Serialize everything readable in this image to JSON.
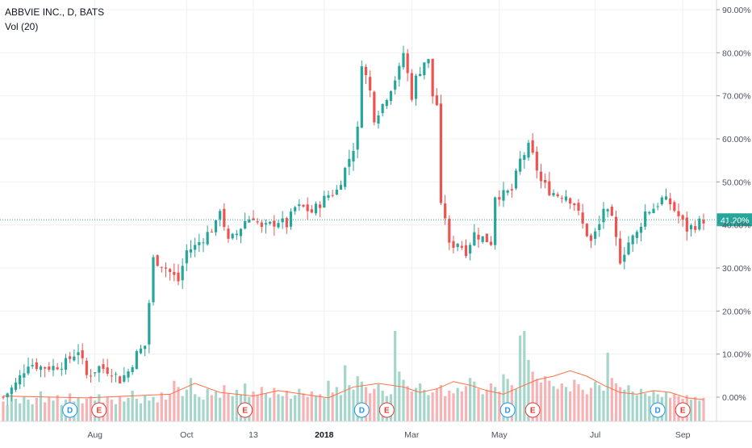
{
  "legend": {
    "symbol": "ABBVIE INC., D, BATS",
    "volume": "Vol (20)"
  },
  "colors": {
    "up": "#26a69a",
    "down": "#ef5350",
    "vol_up": "#a5d6c9",
    "vol_down": "#f7b2b5",
    "vol_ma": "#ff7043",
    "last_line": "#26a69a",
    "grid": "#eef0f3",
    "dividend": "#2196f3",
    "earnings": "#e53935"
  },
  "chart_data": {
    "type": "candlestick",
    "y_axis": {
      "unit": "percent",
      "range": [
        -6,
        92
      ],
      "ticks": [
        "90.00%",
        "80.00%",
        "70.00%",
        "60.00%",
        "50.00%",
        "40.00%",
        "30.00%",
        "20.00%",
        "10.00%",
        "0.00%"
      ],
      "tick_values": [
        90,
        80,
        70,
        60,
        50,
        40,
        30,
        20,
        10,
        0
      ]
    },
    "x_axis": {
      "range": [
        0,
        168
      ],
      "ticks": [
        {
          "label": "Aug",
          "pos": 22,
          "bold": false
        },
        {
          "label": "Oct",
          "pos": 44,
          "bold": false
        },
        {
          "label": "13",
          "pos": 60,
          "bold": false
        },
        {
          "label": "2018",
          "pos": 77,
          "bold": true
        },
        {
          "label": "Mar",
          "pos": 98,
          "bold": false
        },
        {
          "label": "May",
          "pos": 119,
          "bold": false
        },
        {
          "label": "Jul",
          "pos": 142,
          "bold": false
        },
        {
          "label": "Sep",
          "pos": 163,
          "bold": false
        }
      ]
    },
    "last_value": {
      "label": "41.20%",
      "value": 41.2
    },
    "close_path": [
      [
        0,
        0
      ],
      [
        3,
        3
      ],
      [
        6,
        8
      ],
      [
        9,
        7
      ],
      [
        12,
        7
      ],
      [
        15,
        8
      ],
      [
        18,
        11
      ],
      [
        20,
        5
      ],
      [
        23,
        7
      ],
      [
        26,
        6
      ],
      [
        28,
        4
      ],
      [
        30,
        6
      ],
      [
        32,
        10
      ],
      [
        34,
        12
      ],
      [
        36,
        32
      ],
      [
        38,
        31
      ],
      [
        40,
        29
      ],
      [
        42,
        27
      ],
      [
        44,
        34
      ],
      [
        46,
        35
      ],
      [
        49,
        38
      ],
      [
        51,
        40
      ],
      [
        52,
        44
      ],
      [
        54,
        36
      ],
      [
        56,
        38
      ],
      [
        58,
        41
      ],
      [
        60,
        42
      ],
      [
        62,
        39
      ],
      [
        64,
        40
      ],
      [
        66,
        41
      ],
      [
        68,
        40
      ],
      [
        70,
        44
      ],
      [
        72,
        44
      ],
      [
        74,
        43
      ],
      [
        76,
        45
      ],
      [
        78,
        47
      ],
      [
        80,
        48
      ],
      [
        82,
        53
      ],
      [
        84,
        58
      ],
      [
        85,
        62
      ],
      [
        86,
        78
      ],
      [
        88,
        71
      ],
      [
        89,
        65
      ],
      [
        91,
        68
      ],
      [
        93,
        72
      ],
      [
        95,
        76
      ],
      [
        96,
        80
      ],
      [
        98,
        70
      ],
      [
        99,
        74
      ],
      [
        101,
        78
      ],
      [
        102,
        78
      ],
      [
        103,
        70
      ],
      [
        104,
        68
      ],
      [
        105,
        44
      ],
      [
        106,
        42
      ],
      [
        107,
        35
      ],
      [
        109,
        36
      ],
      [
        111,
        34
      ],
      [
        113,
        38
      ],
      [
        115,
        37
      ],
      [
        117,
        36
      ],
      [
        118,
        47
      ],
      [
        120,
        47
      ],
      [
        122,
        48
      ],
      [
        124,
        55
      ],
      [
        126,
        58
      ],
      [
        127,
        56
      ],
      [
        129,
        50
      ],
      [
        131,
        48
      ],
      [
        133,
        47
      ],
      [
        135,
        47
      ],
      [
        137,
        45
      ],
      [
        139,
        40
      ],
      [
        141,
        36
      ],
      [
        143,
        40
      ],
      [
        144,
        44
      ],
      [
        146,
        41
      ],
      [
        148,
        32
      ],
      [
        150,
        36
      ],
      [
        152,
        38
      ],
      [
        154,
        43
      ],
      [
        156,
        44
      ],
      [
        158,
        46
      ],
      [
        160,
        45
      ],
      [
        162,
        42
      ],
      [
        164,
        39
      ],
      [
        166,
        40
      ],
      [
        168,
        41.2
      ]
    ],
    "volume": {
      "range": [
        0,
        100
      ],
      "values": [
        22,
        18,
        30,
        25,
        20,
        28,
        24,
        19,
        26,
        33,
        21,
        27,
        23,
        29,
        18,
        24,
        31,
        22,
        26,
        20,
        25,
        28,
        23,
        30,
        21,
        27,
        24,
        19,
        28,
        22,
        26,
        34,
        25,
        20,
        29,
        23,
        27,
        21,
        32,
        24,
        30,
        45,
        38,
        28,
        35,
        48,
        30,
        27,
        24,
        36,
        29,
        33,
        26,
        40,
        31,
        28,
        35,
        30,
        42,
        27,
        33,
        29,
        38,
        31,
        26,
        37,
        30,
        28,
        34,
        25,
        29,
        36,
        31,
        27,
        33,
        28,
        30,
        26,
        45,
        32,
        38,
        29,
        62,
        40,
        35,
        50,
        44,
        38,
        31,
        36,
        41,
        34,
        28,
        30,
        100,
        55,
        46,
        39,
        33,
        37,
        42,
        35,
        29,
        32,
        36,
        40,
        28,
        34,
        31,
        37,
        33,
        39,
        48,
        44,
        36,
        30,
        35,
        42,
        38,
        33,
        52,
        47,
        40,
        36,
        95,
        120,
        68,
        55,
        47,
        43,
        50,
        45,
        39,
        36,
        42,
        38,
        33,
        46,
        41,
        35,
        30,
        37,
        44,
        40,
        34,
        76,
        48,
        42,
        38,
        35,
        40,
        33,
        29,
        36,
        31,
        28,
        34,
        30,
        27,
        32,
        26,
        30,
        28,
        25,
        29,
        24,
        27,
        23,
        26
      ]
    },
    "volume_ma": [
      [
        0,
        28
      ],
      [
        20,
        26
      ],
      [
        40,
        30
      ],
      [
        46,
        42
      ],
      [
        52,
        32
      ],
      [
        60,
        28
      ],
      [
        66,
        34
      ],
      [
        72,
        30
      ],
      [
        78,
        26
      ],
      [
        84,
        38
      ],
      [
        90,
        42
      ],
      [
        96,
        38
      ],
      [
        100,
        32
      ],
      [
        104,
        36
      ],
      [
        108,
        44
      ],
      [
        112,
        40
      ],
      [
        116,
        34
      ],
      [
        120,
        30
      ],
      [
        124,
        38
      ],
      [
        128,
        46
      ],
      [
        132,
        50
      ],
      [
        136,
        56
      ],
      [
        140,
        50
      ],
      [
        144,
        40
      ],
      [
        148,
        32
      ],
      [
        152,
        30
      ],
      [
        156,
        34
      ],
      [
        160,
        32
      ],
      [
        164,
        26
      ],
      [
        168,
        24
      ]
    ],
    "events": [
      {
        "label": "D",
        "type": "dividend",
        "pos": 16
      },
      {
        "label": "E",
        "type": "earnings",
        "pos": 23
      },
      {
        "label": "E",
        "type": "earnings",
        "pos": 58
      },
      {
        "label": "D",
        "type": "dividend",
        "pos": 86
      },
      {
        "label": "E",
        "type": "earnings",
        "pos": 92
      },
      {
        "label": "D",
        "type": "dividend",
        "pos": 121
      },
      {
        "label": "E",
        "type": "earnings",
        "pos": 127
      },
      {
        "label": "D",
        "type": "dividend",
        "pos": 157
      },
      {
        "label": "E",
        "type": "earnings",
        "pos": 163
      }
    ]
  }
}
